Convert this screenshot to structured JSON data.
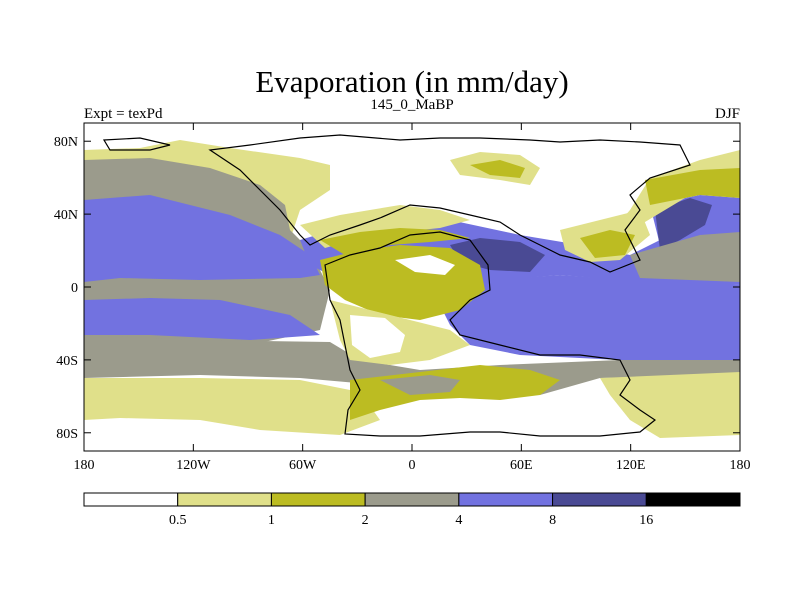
{
  "chart_data": {
    "type": "heatmap",
    "title": "Evaporation (in mm/day)",
    "left_string": "Expt = texPd",
    "center_string": "145_0_MaBP",
    "right_string": "DJF",
    "x_range": [
      -180,
      180
    ],
    "y_range": [
      -90,
      90
    ],
    "x_ticks": [
      {
        "value": -180,
        "label": "180"
      },
      {
        "value": -120,
        "label": "120W"
      },
      {
        "value": -60,
        "label": "60W"
      },
      {
        "value": 0,
        "label": "0"
      },
      {
        "value": 60,
        "label": "60E"
      },
      {
        "value": 120,
        "label": "120E"
      },
      {
        "value": 180,
        "label": "180"
      }
    ],
    "y_ticks": [
      {
        "value": 80,
        "label": "80N"
      },
      {
        "value": 40,
        "label": "40N"
      },
      {
        "value": 0,
        "label": "0"
      },
      {
        "value": -40,
        "label": "40S"
      },
      {
        "value": -80,
        "label": "80S"
      }
    ],
    "colorbar": {
      "colors": [
        "#ffffff",
        "#e0e08a",
        "#bcbc22",
        "#9b9b8c",
        "#7272e0",
        "#4a4a94",
        "#000000"
      ],
      "levels": [
        "0.5",
        "1",
        "2",
        "4",
        "8",
        "16"
      ]
    }
  }
}
